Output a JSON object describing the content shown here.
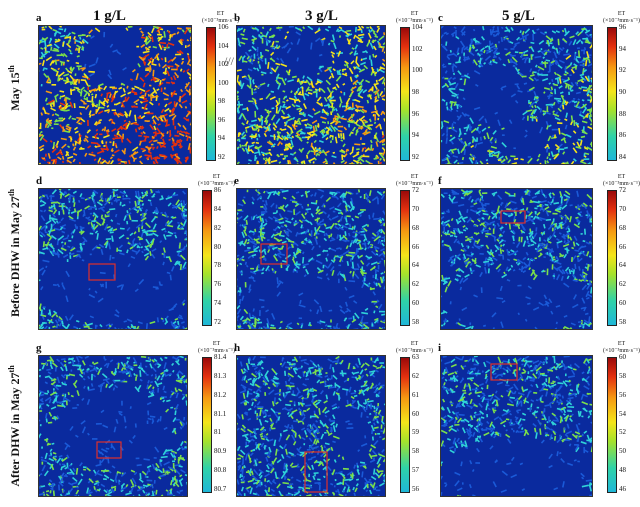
{
  "columns": [
    {
      "title": "1 g/L"
    },
    {
      "title": "3 g/L"
    },
    {
      "title": "5 g/L"
    }
  ],
  "rows": [
    {
      "label_main": "May 15",
      "label_sup": "th"
    },
    {
      "label_main": "Before DHW in May 27",
      "label_sup": "th"
    },
    {
      "label_main": "After DHW in May 27",
      "label_sup": "th"
    }
  ],
  "colorbar_title_line1": "ET",
  "colorbar_title_line2": "(×10⁻³mm·s⁻¹)",
  "panels": [
    {
      "letter": "a",
      "ticks": [
        "106",
        "104",
        "102",
        "100",
        "98",
        "96",
        "94",
        "92"
      ],
      "field_level": 0.72
    },
    {
      "letter": "b",
      "ticks": [
        "104",
        "102",
        "100",
        "98",
        "96",
        "94",
        "92"
      ],
      "field_level": 0.45
    },
    {
      "letter": "c",
      "ticks": [
        "96",
        "94",
        "92",
        "90",
        "88",
        "86",
        "84"
      ],
      "field_level": 0.25
    },
    {
      "letter": "d",
      "ticks": [
        "86",
        "84",
        "82",
        "80",
        "78",
        "76",
        "74",
        "72"
      ],
      "field_level": 0.22
    },
    {
      "letter": "e",
      "ticks": [
        "72",
        "70",
        "68",
        "66",
        "64",
        "62",
        "60",
        "58"
      ],
      "field_level": 0.22
    },
    {
      "letter": "f",
      "ticks": [
        "72",
        "70",
        "68",
        "66",
        "64",
        "62",
        "60",
        "58"
      ],
      "field_level": 0.2
    },
    {
      "letter": "g",
      "ticks": [
        "81.4",
        "81.3",
        "81.2",
        "81.1",
        "81",
        "80.9",
        "80.8",
        "80.7"
      ],
      "field_level": 0.22
    },
    {
      "letter": "h",
      "ticks": [
        "63",
        "62",
        "61",
        "60",
        "59",
        "58",
        "57",
        "56"
      ],
      "field_level": 0.22
    },
    {
      "letter": "i",
      "ticks": [
        "60",
        "58",
        "56",
        "54",
        "52",
        "50",
        "48",
        "46"
      ],
      "field_level": 0.2
    }
  ],
  "colors": {
    "deep_blue": "#0a2a9e",
    "mid_blue": "#1a5ad8",
    "cyan": "#2fd2d8",
    "green": "#7be04a",
    "yellow": "#f4e51a",
    "orange": "#f59a12",
    "red": "#e3300f",
    "roi": "#e0302a"
  }
}
